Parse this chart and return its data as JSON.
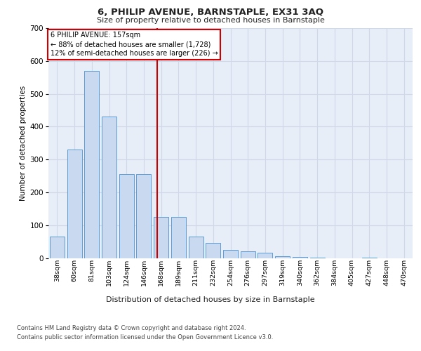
{
  "title": "6, PHILIP AVENUE, BARNSTAPLE, EX31 3AQ",
  "subtitle": "Size of property relative to detached houses in Barnstaple",
  "xlabel": "Distribution of detached houses by size in Barnstaple",
  "ylabel": "Number of detached properties",
  "categories": [
    "38sqm",
    "60sqm",
    "81sqm",
    "103sqm",
    "124sqm",
    "146sqm",
    "168sqm",
    "189sqm",
    "211sqm",
    "232sqm",
    "254sqm",
    "276sqm",
    "297sqm",
    "319sqm",
    "340sqm",
    "362sqm",
    "384sqm",
    "405sqm",
    "427sqm",
    "448sqm",
    "470sqm"
  ],
  "values": [
    65,
    330,
    570,
    430,
    255,
    255,
    125,
    125,
    65,
    45,
    25,
    20,
    15,
    5,
    3,
    2,
    0,
    0,
    2,
    0,
    0
  ],
  "bar_color": "#c9daf0",
  "bar_edge_color": "#5b9bd5",
  "grid_color": "#d0d8e8",
  "background_color": "#e8eef8",
  "annotation_text": "6 PHILIP AVENUE: 157sqm\n← 88% of detached houses are smaller (1,728)\n12% of semi-detached houses are larger (226) →",
  "annotation_box_color": "#ffffff",
  "annotation_box_edge": "#cc0000",
  "vline_pos": 5.78,
  "vline_color": "#cc0000",
  "ylim": [
    0,
    700
  ],
  "yticks": [
    0,
    100,
    200,
    300,
    400,
    500,
    600,
    700
  ],
  "footer_line1": "Contains HM Land Registry data © Crown copyright and database right 2024.",
  "footer_line2": "Contains public sector information licensed under the Open Government Licence v3.0."
}
